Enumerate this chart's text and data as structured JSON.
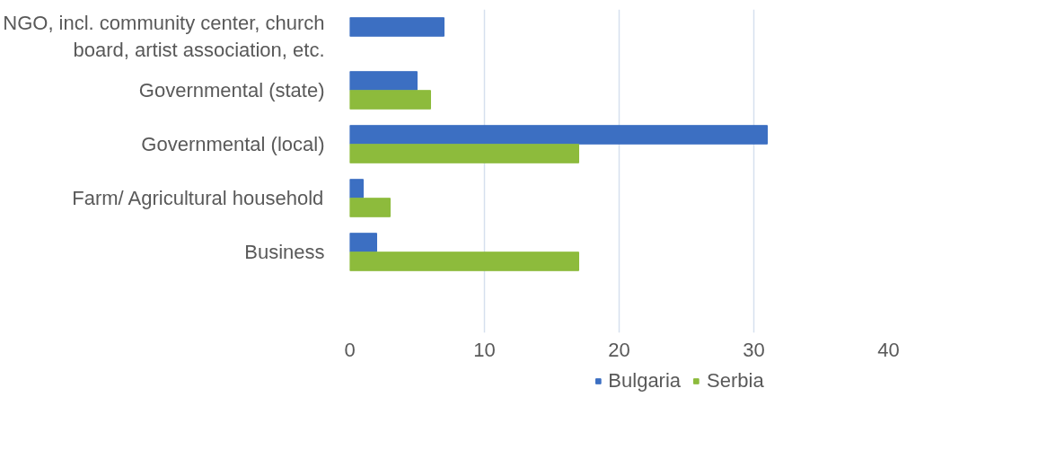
{
  "chart_data": {
    "type": "bar",
    "orientation": "horizontal",
    "categories": [
      "NGO, incl. community center, church board, artist association, etc.",
      "Governmental (state)",
      "Governmental (local)",
      "Farm/ Agricultural household",
      "Business",
      null
    ],
    "series": [
      {
        "name": "Bulgaria",
        "color": "#3c6fc2",
        "values": [
          7,
          5,
          31,
          1,
          2,
          null
        ]
      },
      {
        "name": "Serbia",
        "color": "#8dbb3c",
        "values": [
          null,
          6,
          17,
          3,
          17,
          null
        ]
      }
    ],
    "xlim": [
      0,
      40
    ],
    "xticks": [
      0,
      10,
      20,
      30,
      40
    ],
    "grid": "x",
    "legend": "bottom"
  }
}
